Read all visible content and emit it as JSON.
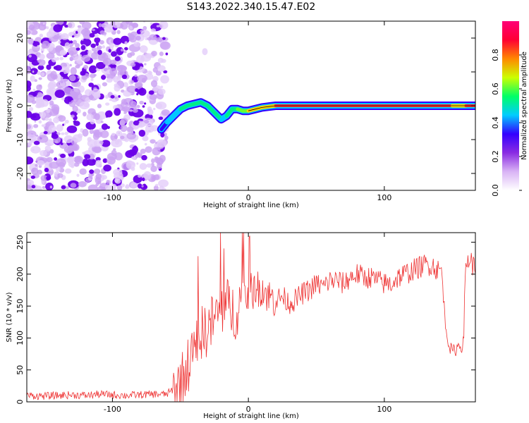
{
  "title": "S143.2022.340.15.47.E02",
  "chart_data": [
    {
      "type": "heatmap",
      "xlabel": "Height of straight line (km)",
      "ylabel": "Frequency (Hz)",
      "xlim": [
        -163,
        167
      ],
      "ylim": [
        -25,
        25
      ],
      "xticks": [
        -100,
        0,
        100
      ],
      "yticks": [
        -20,
        -10,
        0,
        10,
        20
      ],
      "xticklabels": [
        "-100",
        "0",
        "100"
      ],
      "yticklabels": [
        "-20",
        "-10",
        "0",
        "10",
        "20"
      ],
      "colorbar": {
        "label": "Normalized spectral amplitude",
        "range": [
          0,
          1
        ],
        "ticks": [
          0.0,
          0.2,
          0.4,
          0.6,
          0.8
        ],
        "ticklabels": [
          "0.0",
          "0.2",
          "0.4",
          "0.6",
          "0.8"
        ],
        "colors": [
          "#ffffff",
          "#d9b3f5",
          "#8a2be2",
          "#3300ff",
          "#00ccff",
          "#00ff66",
          "#ccff00",
          "#ff8800",
          "#ff0033",
          "#ff0077"
        ]
      },
      "noise_region": {
        "x_from": -163,
        "x_to": -60,
        "y_from": -25,
        "y_to": 25
      },
      "line_trace": {
        "x": [
          -64,
          -60,
          -55,
          -50,
          -45,
          -40,
          -35,
          -30,
          -25,
          -20,
          -16,
          -12,
          -8,
          -4,
          0,
          5,
          10,
          20,
          30,
          40,
          60,
          80,
          100,
          120,
          140,
          150,
          160,
          167
        ],
        "y": [
          -7,
          -5,
          -3,
          -1,
          0,
          0.5,
          1,
          0,
          -2,
          -4,
          -3,
          -1,
          -1,
          -1.5,
          -1.5,
          -1,
          -0.5,
          0,
          0,
          0,
          0,
          0,
          0,
          0,
          0,
          0,
          0,
          0
        ],
        "amplitude": [
          0.15,
          0.3,
          0.35,
          0.4,
          0.45,
          0.45,
          0.45,
          0.45,
          0.4,
          0.35,
          0.4,
          0.45,
          0.5,
          0.6,
          0.7,
          0.7,
          0.75,
          0.8,
          0.85,
          0.9,
          0.9,
          0.9,
          0.9,
          0.9,
          0.9,
          0.7,
          0.85,
          0.85
        ]
      }
    },
    {
      "type": "line",
      "xlabel": "Height of straight line (km)",
      "ylabel": "SNR (10 * v/v)",
      "xlim": [
        -163,
        167
      ],
      "ylim": [
        0,
        265
      ],
      "xticks": [
        -100,
        0,
        100
      ],
      "yticks": [
        0,
        50,
        100,
        150,
        200,
        250
      ],
      "xticklabels": [
        "-100",
        "0",
        "100"
      ],
      "yticklabels": [
        "0",
        "50",
        "100",
        "150",
        "200",
        "250"
      ],
      "color": "#ee3333",
      "series": [
        {
          "x": [
            -163,
            -150,
            -140,
            -130,
            -120,
            -110,
            -100,
            -90,
            -80,
            -70,
            -60,
            -55,
            -50,
            -45,
            -40,
            -35,
            -30,
            -25,
            -20,
            -15,
            -10,
            -5,
            0,
            5,
            10,
            15,
            20,
            25,
            30,
            35,
            40,
            45,
            50,
            55,
            60,
            65,
            70,
            75,
            80,
            85,
            90,
            95,
            100,
            105,
            110,
            115,
            120,
            125,
            130,
            135,
            140,
            142,
            145,
            148,
            150,
            152,
            155,
            158,
            160,
            163,
            167
          ],
          "y": [
            10,
            9,
            10,
            11,
            10,
            12,
            11,
            10,
            11,
            12,
            12,
            20,
            30,
            55,
            80,
            105,
            115,
            130,
            145,
            150,
            140,
            160,
            170,
            175,
            180,
            165,
            160,
            165,
            155,
            160,
            170,
            175,
            185,
            180,
            190,
            190,
            185,
            195,
            200,
            195,
            195,
            190,
            185,
            185,
            195,
            200,
            205,
            210,
            215,
            215,
            205,
            210,
            120,
            85,
            80,
            80,
            90,
            85,
            215,
            225,
            205
          ]
        }
      ]
    }
  ]
}
